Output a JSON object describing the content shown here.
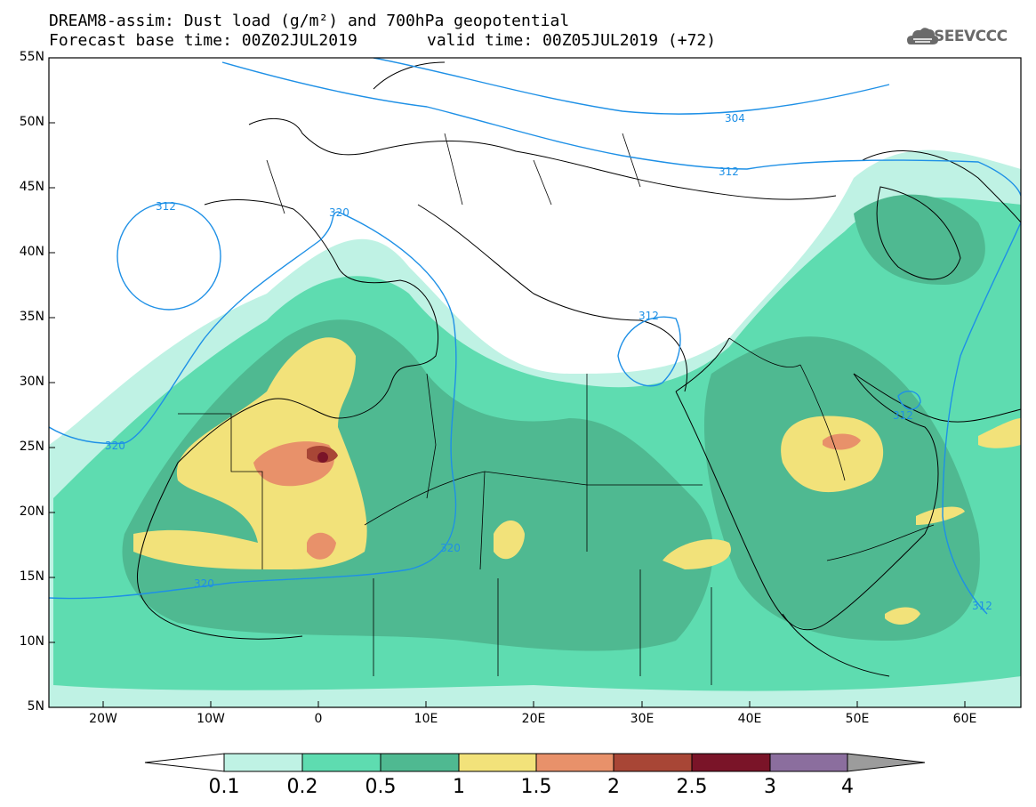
{
  "title": {
    "line1": "DREAM8-assim: Dust load (g/m²) and 700hPa geopotential",
    "line2": "Forecast base time: 00Z02JUL2019",
    "line2b": "valid time: 00Z05JUL2019 (+72)"
  },
  "logo": {
    "text": "SEEVCCC",
    "icon": "cloud-icon"
  },
  "axes": {
    "lat_labels": [
      "55N",
      "50N",
      "45N",
      "40N",
      "35N",
      "30N",
      "25N",
      "20N",
      "15N",
      "10N",
      "5N"
    ],
    "lon_labels": [
      "20W",
      "10W",
      "0",
      "10E",
      "20E",
      "30E",
      "40E",
      "50E",
      "60E"
    ]
  },
  "contour_labels": [
    "304",
    "312",
    "312",
    "312",
    "312",
    "320",
    "320",
    "320",
    "320",
    "312"
  ],
  "colorbar": {
    "levels": [
      "0.1",
      "0.2",
      "0.5",
      "1",
      "1.5",
      "2",
      "2.5",
      "3",
      "4"
    ],
    "colors": [
      "#bff2e4",
      "#5edcb0",
      "#4fb991",
      "#f2e27a",
      "#e8916a",
      "#a84636",
      "#7a1428",
      "#8b6e9e",
      "#9c9c9c"
    ]
  },
  "colors": {
    "dust_light": "#bff2e4",
    "dust_low": "#5edcb0",
    "dust_mid": "#4fb991",
    "dust_yellow": "#f2e27a",
    "dust_orange": "#e8916a",
    "dust_red": "#a84636",
    "dust_dark": "#7a1428",
    "contour": "#1e90e6"
  }
}
